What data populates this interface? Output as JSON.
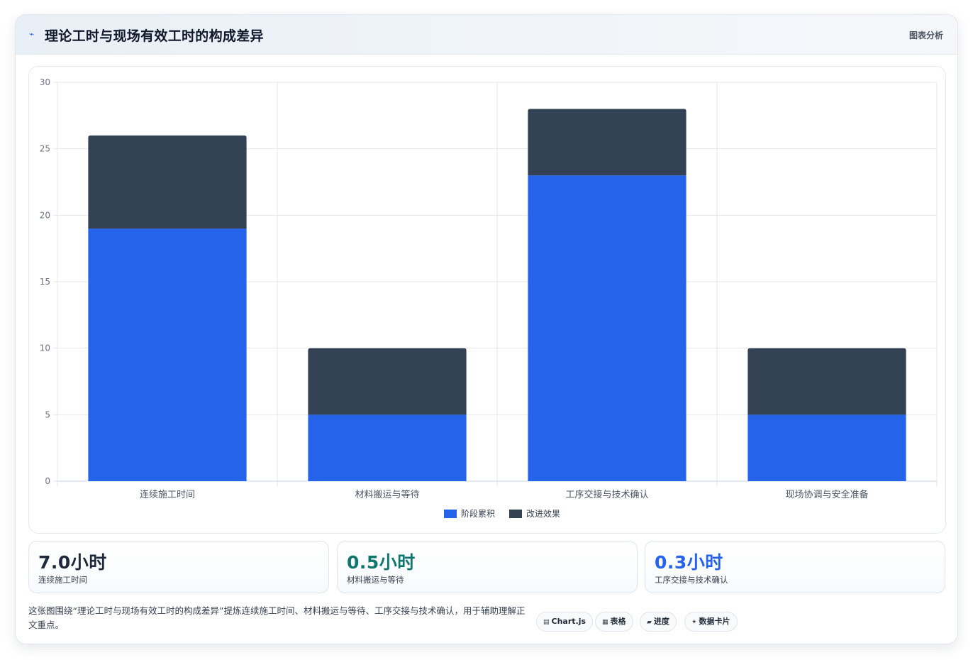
{
  "header": {
    "title": "理论工时与现场有效工时的构成差异",
    "right_label": "图表分析",
    "icon": "chart-icon"
  },
  "chart_data": {
    "type": "bar",
    "stacked": true,
    "categories": [
      "连续施工时间",
      "材料搬运与等待",
      "工序交接与技术确认",
      "现场协调与安全准备"
    ],
    "series": [
      {
        "name": "阶段累积",
        "values": [
          19,
          5,
          23,
          5
        ],
        "color": "#2563eb"
      },
      {
        "name": "改进效果",
        "values": [
          7,
          5,
          5,
          5
        ],
        "color": "#334155"
      }
    ],
    "ylim": [
      0,
      30
    ],
    "yticks": [
      0,
      5,
      10,
      15,
      20,
      25,
      30
    ],
    "grid": true,
    "legend": "bottom-center"
  },
  "stats": [
    {
      "value": "7.0小时",
      "label": "连续施工时间",
      "color": "#1e293b"
    },
    {
      "value": "0.5小时",
      "label": "材料搬运与等待",
      "color": "#0f766e"
    },
    {
      "value": "0.3小时",
      "label": "工序交接与技术确认",
      "color": "#2563eb"
    }
  ],
  "footer": {
    "text": "这张图围绕“理论工时与现场有效工时的构成差异”提炼连续施工时间、材料搬运与等待、工序交接与技术确认，用于辅助理解正文重点。",
    "chips": [
      {
        "icon": "▤",
        "label": "Chart.js"
      },
      {
        "icon": "▦",
        "label": "表格"
      },
      {
        "icon": "▰",
        "label": "进度"
      },
      {
        "icon": "✦",
        "label": "数据卡片"
      }
    ]
  }
}
